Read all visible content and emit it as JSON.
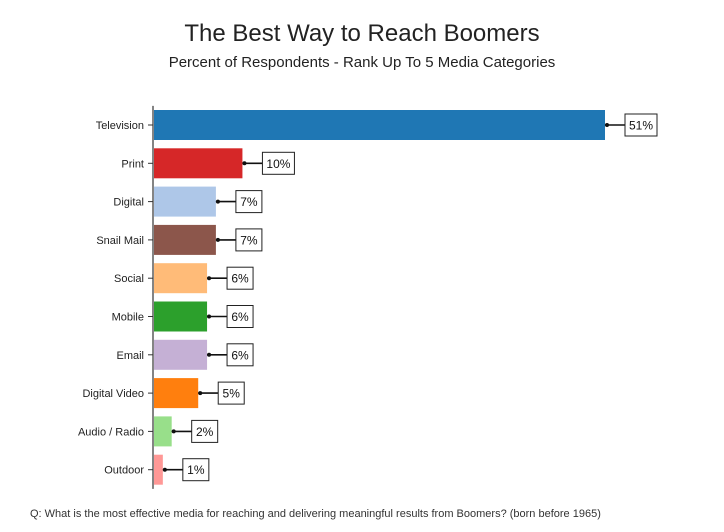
{
  "chart_data": {
    "type": "bar",
    "orientation": "horizontal",
    "title": "The Best Way to Reach Boomers",
    "subtitle": "Percent of Respondents - Rank Up To 5 Media Categories",
    "footnote": "Q: What is the most effective media for reaching and delivering meaningful results from Boomers? (born before 1965)",
    "categories": [
      "Television",
      "Print",
      "Digital",
      "Snail Mail",
      "Social",
      "Mobile",
      "Email",
      "Digital Video",
      "Audio / Radio",
      "Outdoor"
    ],
    "values": [
      51,
      10,
      7,
      7,
      6,
      6,
      6,
      5,
      2,
      1
    ],
    "data_labels": [
      "51%",
      "10%",
      "7%",
      "7%",
      "6%",
      "6%",
      "6%",
      "5%",
      "2%",
      "1%"
    ],
    "colors": [
      "#1f77b4",
      "#d62728",
      "#aec7e8",
      "#8c564b",
      "#ffbb78",
      "#2ca02c",
      "#c5b0d5",
      "#ff7f0e",
      "#98df8a",
      "#ff9896"
    ],
    "xlim": [
      0,
      51
    ],
    "grid": false,
    "legend": "none"
  }
}
